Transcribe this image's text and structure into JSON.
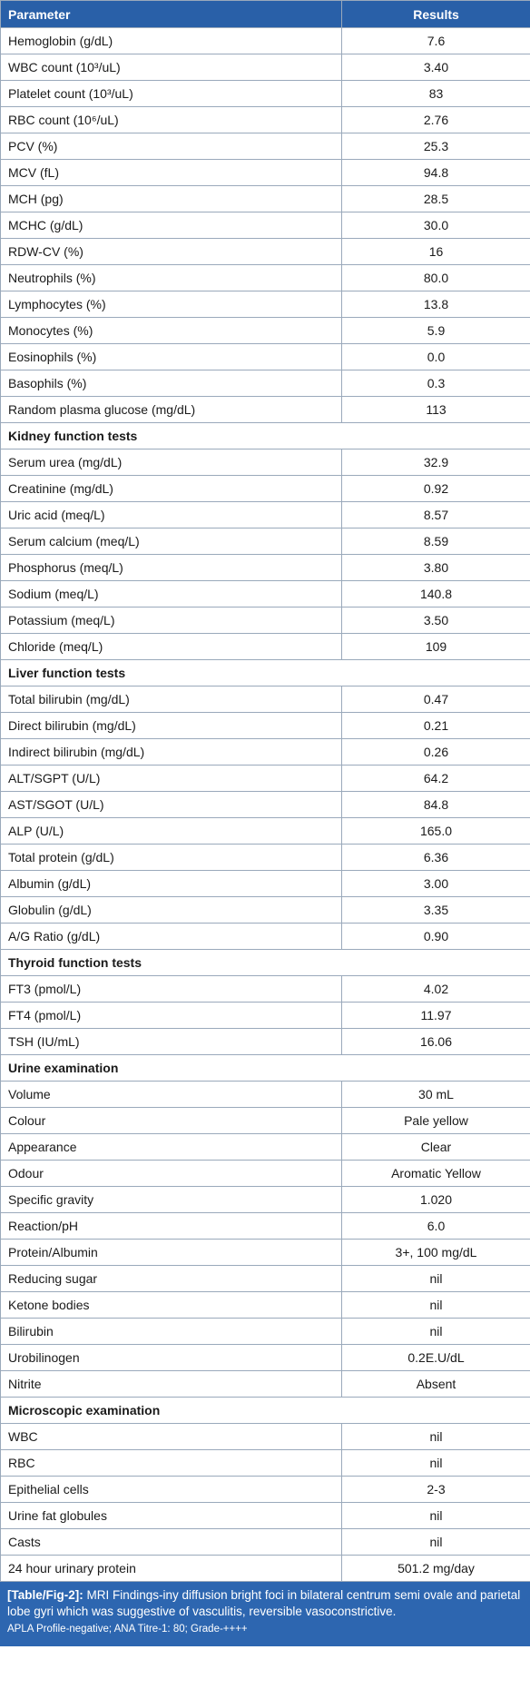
{
  "table": {
    "header": [
      "Parameter",
      "Results"
    ],
    "rows": [
      [
        "Hemoglobin (g/dL)",
        "7.6"
      ],
      [
        "WBC count (10³/uL)",
        "3.40"
      ],
      [
        "Platelet count (10³/uL)",
        "83"
      ],
      [
        "RBC count (10⁶/uL)",
        "2.76"
      ],
      [
        "PCV (%)",
        "25.3"
      ],
      [
        "MCV (fL)",
        "94.8"
      ],
      [
        "MCH (pg)",
        "28.5"
      ],
      [
        "MCHC (g/dL)",
        "30.0"
      ],
      [
        "RDW-CV (%)",
        "16"
      ],
      [
        "Neutrophils (%)",
        "80.0"
      ],
      [
        "Lymphocytes (%)",
        "13.8"
      ],
      [
        "Monocytes (%)",
        "5.9"
      ],
      [
        "Eosinophils (%)",
        "0.0"
      ],
      [
        "Basophils (%)",
        "0.3"
      ],
      [
        "Random plasma glucose (mg/dL)",
        "113"
      ],
      [
        "Kidney function tests"
      ],
      [
        "Serum urea (mg/dL)",
        "32.9"
      ],
      [
        "Creatinine (mg/dL)",
        "0.92"
      ],
      [
        "Uric acid (meq/L)",
        "8.57"
      ],
      [
        "Serum calcium (meq/L)",
        "8.59"
      ],
      [
        "Phosphorus (meq/L)",
        "3.80"
      ],
      [
        "Sodium (meq/L)",
        "140.8"
      ],
      [
        "Potassium (meq/L)",
        "3.50"
      ],
      [
        "Chloride (meq/L)",
        "109"
      ],
      [
        "Liver function tests"
      ],
      [
        "Total bilirubin (mg/dL)",
        "0.47"
      ],
      [
        "Direct bilirubin (mg/dL)",
        "0.21"
      ],
      [
        "Indirect bilirubin (mg/dL)",
        "0.26"
      ],
      [
        "ALT/SGPT (U/L)",
        "64.2"
      ],
      [
        "AST/SGOT (U/L)",
        "84.8"
      ],
      [
        "ALP (U/L)",
        "165.0"
      ],
      [
        "Total protein (g/dL)",
        "6.36"
      ],
      [
        "Albumin (g/dL)",
        "3.00"
      ],
      [
        "Globulin (g/dL)",
        "3.35"
      ],
      [
        "A/G Ratio (g/dL)",
        "0.90"
      ],
      [
        "Thyroid function tests"
      ],
      [
        "FT3 (pmol/L)",
        "4.02"
      ],
      [
        "FT4 (pmol/L)",
        "11.97"
      ],
      [
        "TSH (IU/mL)",
        "16.06"
      ],
      [
        "Urine examination"
      ],
      [
        "Volume",
        "30 mL"
      ],
      [
        "Colour",
        "Pale yellow"
      ],
      [
        "Appearance",
        "Clear"
      ],
      [
        "Odour",
        "Aromatic Yellow"
      ],
      [
        "Specific gravity",
        "1.020"
      ],
      [
        "Reaction/pH",
        "6.0"
      ],
      [
        "Protein/Albumin",
        "3+, 100 mg/dL"
      ],
      [
        "Reducing sugar",
        "nil"
      ],
      [
        "Ketone bodies",
        "nil"
      ],
      [
        "Bilirubin",
        "nil"
      ],
      [
        "Urobilinogen",
        "0.2E.U/dL"
      ],
      [
        "Nitrite",
        "Absent"
      ],
      [
        "Microscopic examination"
      ],
      [
        "WBC",
        "nil"
      ],
      [
        "RBC",
        "nil"
      ],
      [
        "Epithelial cells",
        "2-3"
      ],
      [
        "Urine fat globules",
        "nil"
      ],
      [
        "Casts",
        "nil"
      ],
      [
        "24 hour urinary protein",
        "501.2 mg/day"
      ]
    ]
  },
  "caption": {
    "label": "[Table/Fig-2]:",
    "text": "MRI Findings-iny diffusion bright foci in bilateral centrum semi ovale and parietal lobe gyri which was suggestive of vasculitis, reversible vasoconstrictive.",
    "note": "APLA Profile-negative; ANA Titre-1: 80; Grade-++++"
  }
}
